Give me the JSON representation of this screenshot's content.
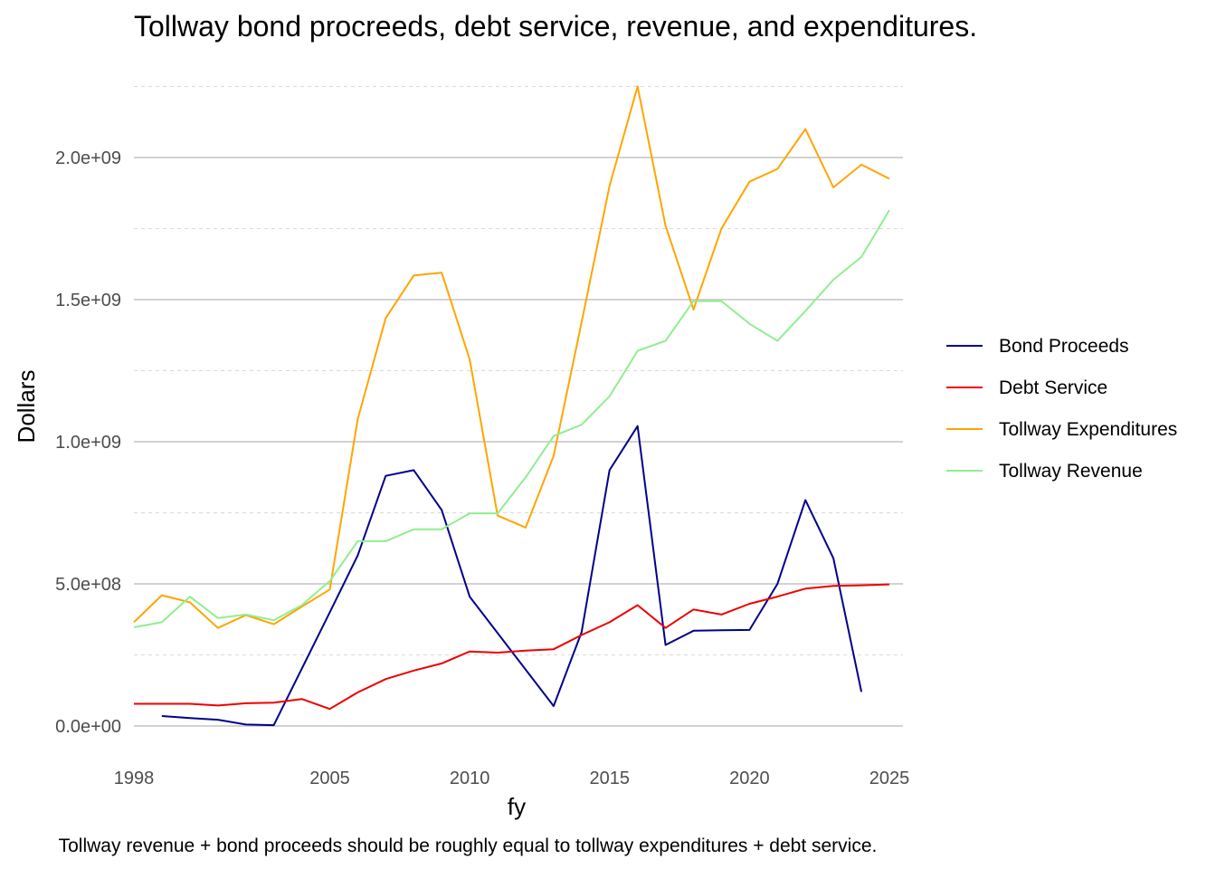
{
  "chart_data": {
    "type": "line",
    "title": "Tollway bond procreeds, debt service, revenue, and expenditures.",
    "caption": "Tollway revenue + bond proceeds should be roughly equal to tollway expenditures + debt service.",
    "xlabel": "fy",
    "ylabel": "Dollars",
    "xlim": [
      1998,
      2025
    ],
    "ylim": [
      -100000000,
      2250000000
    ],
    "x_ticks": [
      1998,
      2005,
      2010,
      2015,
      2020,
      2025
    ],
    "x_tick_labels": [
      "1998",
      "2005",
      "2010",
      "2015",
      "2020",
      "2025"
    ],
    "y_ticks": [
      0,
      500000000,
      1000000000,
      1500000000,
      2000000000
    ],
    "y_tick_labels": [
      "0.0e+00",
      "5.0e+08",
      "1.0e+09",
      "1.5e+09",
      "2.0e+09"
    ],
    "grid": true,
    "legend_position": "right",
    "series": [
      {
        "name": "Bond Proceeds",
        "color": "#00008b",
        "x": [
          1999,
          2000,
          2001,
          2002,
          2003,
          2005,
          2006,
          2007,
          2008,
          2009,
          2010,
          2013,
          2014,
          2015,
          2016,
          2017,
          2018,
          2019,
          2020,
          2021,
          2022,
          2023,
          2024
        ],
        "y": [
          35000000,
          28000000,
          22000000,
          5000000,
          3000000,
          400000000,
          600000000,
          880000000,
          900000000,
          760000000,
          455000000,
          70000000,
          330000000,
          900000000,
          1055000000,
          285000000,
          335000000,
          337000000,
          338000000,
          500000000,
          795000000,
          590000000,
          120000000
        ]
      },
      {
        "name": "Debt Service",
        "color": "#ee0000",
        "x": [
          1998,
          1999,
          2000,
          2001,
          2002,
          2003,
          2004,
          2005,
          2006,
          2007,
          2008,
          2009,
          2010,
          2011,
          2012,
          2013,
          2014,
          2015,
          2016,
          2017,
          2018,
          2019,
          2020,
          2021,
          2022,
          2023,
          2024,
          2025
        ],
        "y": [
          78000000,
          78000000,
          78000000,
          72000000,
          80000000,
          82000000,
          95000000,
          60000000,
          118000000,
          165000000,
          195000000,
          220000000,
          262000000,
          258000000,
          265000000,
          270000000,
          320000000,
          365000000,
          425000000,
          345000000,
          410000000,
          392000000,
          430000000,
          455000000,
          483000000,
          493000000,
          495000000,
          498000000
        ]
      },
      {
        "name": "Tollway Expenditures",
        "color": "#ffa500",
        "x": [
          1998,
          1999,
          2000,
          2001,
          2002,
          2003,
          2004,
          2005,
          2006,
          2007,
          2008,
          2009,
          2010,
          2011,
          2012,
          2013,
          2014,
          2015,
          2016,
          2017,
          2018,
          2019,
          2020,
          2021,
          2022,
          2023,
          2024,
          2025
        ],
        "y": [
          365000000,
          460000000,
          435000000,
          345000000,
          390000000,
          358000000,
          420000000,
          480000000,
          1080000000,
          1435000000,
          1585000000,
          1595000000,
          1290000000,
          740000000,
          698000000,
          950000000,
          1420000000,
          1900000000,
          2250000000,
          1760000000,
          1465000000,
          1750000000,
          1915000000,
          1960000000,
          2100000000,
          1895000000,
          1975000000,
          1925000000
        ]
      },
      {
        "name": "Tollway Revenue",
        "color": "#90ee90",
        "x": [
          1998,
          1999,
          2000,
          2001,
          2002,
          2003,
          2004,
          2005,
          2006,
          2007,
          2008,
          2009,
          2010,
          2011,
          2012,
          2013,
          2014,
          2015,
          2016,
          2017,
          2018,
          2019,
          2020,
          2021,
          2022,
          2023,
          2024,
          2025
        ],
        "y": [
          347000000,
          365000000,
          455000000,
          380000000,
          392000000,
          372000000,
          425000000,
          510000000,
          650000000,
          650000000,
          692000000,
          692000000,
          748000000,
          748000000,
          875000000,
          1020000000,
          1060000000,
          1160000000,
          1320000000,
          1355000000,
          1495000000,
          1495000000,
          1415000000,
          1355000000,
          1460000000,
          1570000000,
          1650000000,
          1815000000
        ]
      }
    ]
  }
}
